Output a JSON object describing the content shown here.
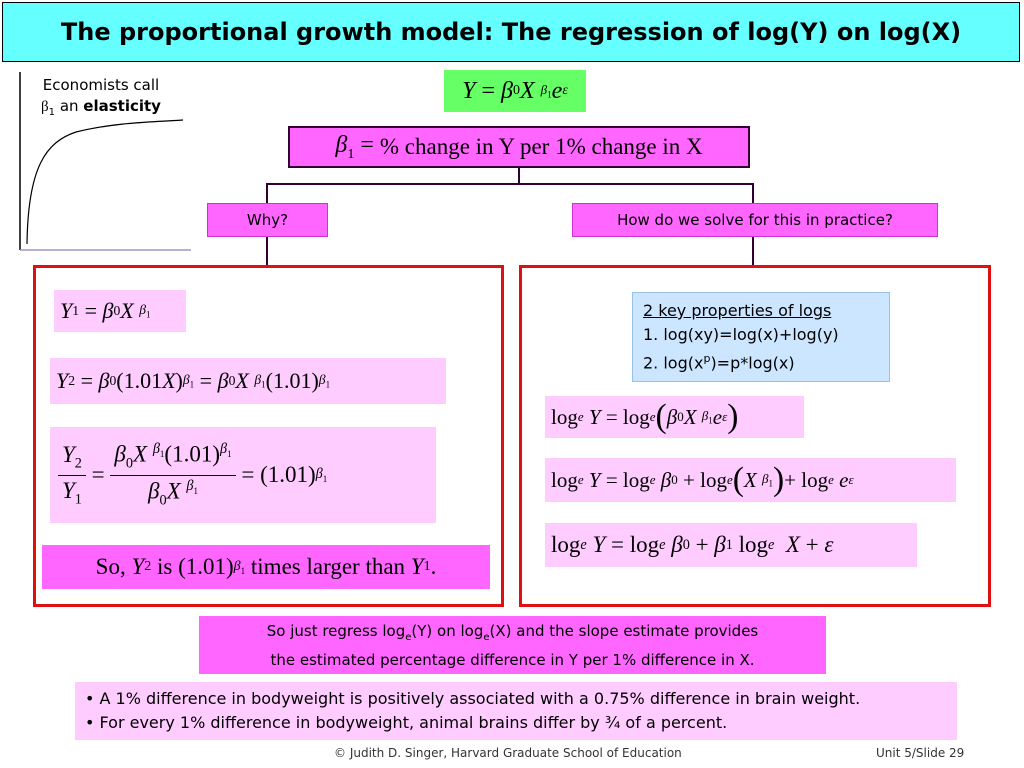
{
  "title": "The proportional growth model: The regression of log(Y) on log(X)",
  "side_note": {
    "line1": "Economists call",
    "beta": "β",
    "sub": "1",
    "mid": " an ",
    "bold": "elasticity"
  },
  "model_eq": "Y = β0 X^β1 e^ε",
  "beta_def": "% change in Y per 1% change in X",
  "why_label": "Why?",
  "how_label": "How do we solve for this in practice?",
  "left_eqs": {
    "eq1": "Y1 = β0 X^β1",
    "eq2": "Y2 = β0(1.01X)^β1 = β0 X^β1 (1.01)^β1",
    "eq3": "Y2/Y1 = β0 X^β1 (1.01)^β1 / β0 X^β1 = (1.01)^β1",
    "so_text_1": "So, ",
    "so_text_2": " is ",
    "so_text_3": " times larger than ",
    "so_text_4": "."
  },
  "log_props": {
    "heading": "2 key properties of logs",
    "item1": "1. log(xy)=log(x)+log(y)",
    "item2_a": "2. log(x",
    "item2_sup": "p",
    "item2_b": ")=p*log(x)"
  },
  "right_eqs": {
    "eq1": "log_e Y = log_e(β0 X^β1 e^ε)",
    "eq2": "log_e Y = log_e β0 + log_e(X^β1) + log_e e^ε",
    "eq3": "log_e Y = log_e β0 + β1 log_e X + ε"
  },
  "regress_note": {
    "p1": "So just regress log",
    "sub1": "e",
    "p2": "(Y) on log",
    "sub2": "e",
    "p3": "(X) and the slope estimate provides",
    "line2": "the estimated percentage difference in Y per 1% difference in X."
  },
  "bullets": [
    "• A 1% difference in bodyweight is positively associated with a 0.75% difference in brain weight.",
    "• For every 1% difference in bodyweight, animal brains differ by ¾ of a percent."
  ],
  "footer": {
    "credit": "© Judith D. Singer, Harvard Graduate School of Education",
    "slide": "Unit 5/Slide 29"
  },
  "colors": {
    "title_bg": "#66ffff",
    "pink": "#ff66ff",
    "light_pink": "#ffccff",
    "green": "#66ff66",
    "blue": "#cce6ff",
    "red": "#e01010"
  }
}
